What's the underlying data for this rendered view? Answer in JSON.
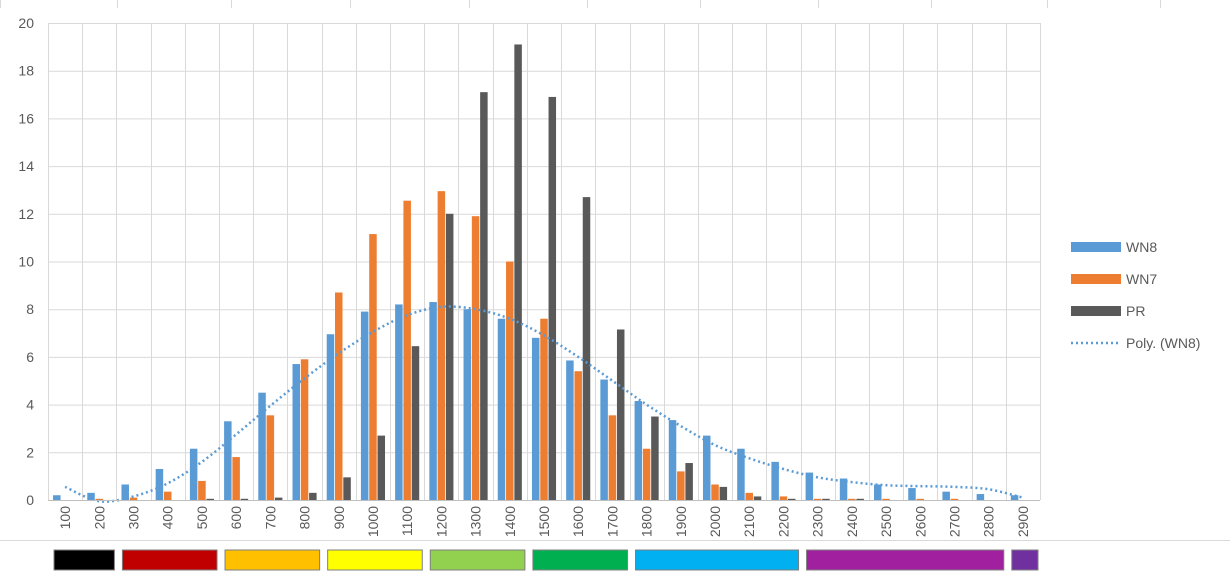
{
  "chart_data": {
    "type": "bar",
    "categories": [
      "100",
      "200",
      "300",
      "400",
      "500",
      "600",
      "700",
      "800",
      "900",
      "1000",
      "1100",
      "1200",
      "1300",
      "1400",
      "1500",
      "1600",
      "1700",
      "1800",
      "1900",
      "2000",
      "2100",
      "2200",
      "2300",
      "2400",
      "2500",
      "2600",
      "2700",
      "2800",
      "2900"
    ],
    "ylim": [
      0,
      20
    ],
    "yticks": [
      0,
      2,
      4,
      6,
      8,
      10,
      12,
      14,
      16,
      18,
      20
    ],
    "grid": true,
    "legend_position": "right",
    "series": [
      {
        "name": "WN8",
        "color": "#5b9bd5",
        "values": [
          0.2,
          0.3,
          0.65,
          1.3,
          2.15,
          3.3,
          4.5,
          5.7,
          6.95,
          7.9,
          8.2,
          8.3,
          8.0,
          7.6,
          6.8,
          5.85,
          5.05,
          4.15,
          3.35,
          2.7,
          2.15,
          1.6,
          1.15,
          0.9,
          0.65,
          0.5,
          0.35,
          0.25,
          0.2
        ]
      },
      {
        "name": "WN7",
        "color": "#ed7d31",
        "values": [
          0,
          0.05,
          0.1,
          0.35,
          0.8,
          1.8,
          3.55,
          5.9,
          8.7,
          11.15,
          12.55,
          12.95,
          11.9,
          10.0,
          7.6,
          5.4,
          3.55,
          2.15,
          1.2,
          0.65,
          0.3,
          0.15,
          0.05,
          0.05,
          0.05,
          0.05,
          0.05,
          0,
          0
        ]
      },
      {
        "name": "PR",
        "color": "#595959",
        "values": [
          0,
          0,
          0,
          0,
          0.05,
          0.05,
          0.1,
          0.3,
          0.95,
          2.7,
          6.45,
          12.0,
          17.1,
          19.1,
          16.9,
          12.7,
          7.15,
          3.5,
          1.55,
          0.55,
          0.15,
          0.05,
          0.05,
          0.05,
          0,
          0,
          0,
          0,
          0
        ]
      }
    ],
    "trendline": {
      "name": "Poly. (WN8)",
      "color": "#5b9bd5",
      "style": "dotted",
      "x": [
        "100",
        "200",
        "300",
        "400",
        "500",
        "600",
        "700",
        "800",
        "900",
        "1000",
        "1100",
        "1200",
        "1300",
        "1400",
        "1500",
        "1600",
        "1700",
        "1800",
        "1900",
        "2000",
        "2100",
        "2200",
        "2300",
        "2400",
        "2500",
        "2600",
        "2700",
        "2800",
        "2900"
      ],
      "y": [
        0.55,
        -0.05,
        0.15,
        0.7,
        1.6,
        2.75,
        3.95,
        5.1,
        6.15,
        7.05,
        7.75,
        8.1,
        8.0,
        7.6,
        6.9,
        6.0,
        5.0,
        4.0,
        3.1,
        2.3,
        1.75,
        1.3,
        0.95,
        0.75,
        0.62,
        0.58,
        0.55,
        0.45,
        0.1
      ]
    },
    "rating_bands": [
      {
        "color": "#000000",
        "from": "100",
        "to": "200"
      },
      {
        "color": "#c00000",
        "from": "300",
        "to": "500"
      },
      {
        "color": "#ffc000",
        "from": "600",
        "to": "800"
      },
      {
        "color": "#ffff00",
        "from": "900",
        "to": "1100"
      },
      {
        "color": "#92d050",
        "from": "1200",
        "to": "1400"
      },
      {
        "color": "#00b050",
        "from": "1500",
        "to": "1700"
      },
      {
        "color": "#00b0f0",
        "from": "1800",
        "to": "2200"
      },
      {
        "color": "#a020a0",
        "from": "2300",
        "to": "2800"
      },
      {
        "color": "#7030a0",
        "from": "2900",
        "to": "2900"
      }
    ]
  }
}
